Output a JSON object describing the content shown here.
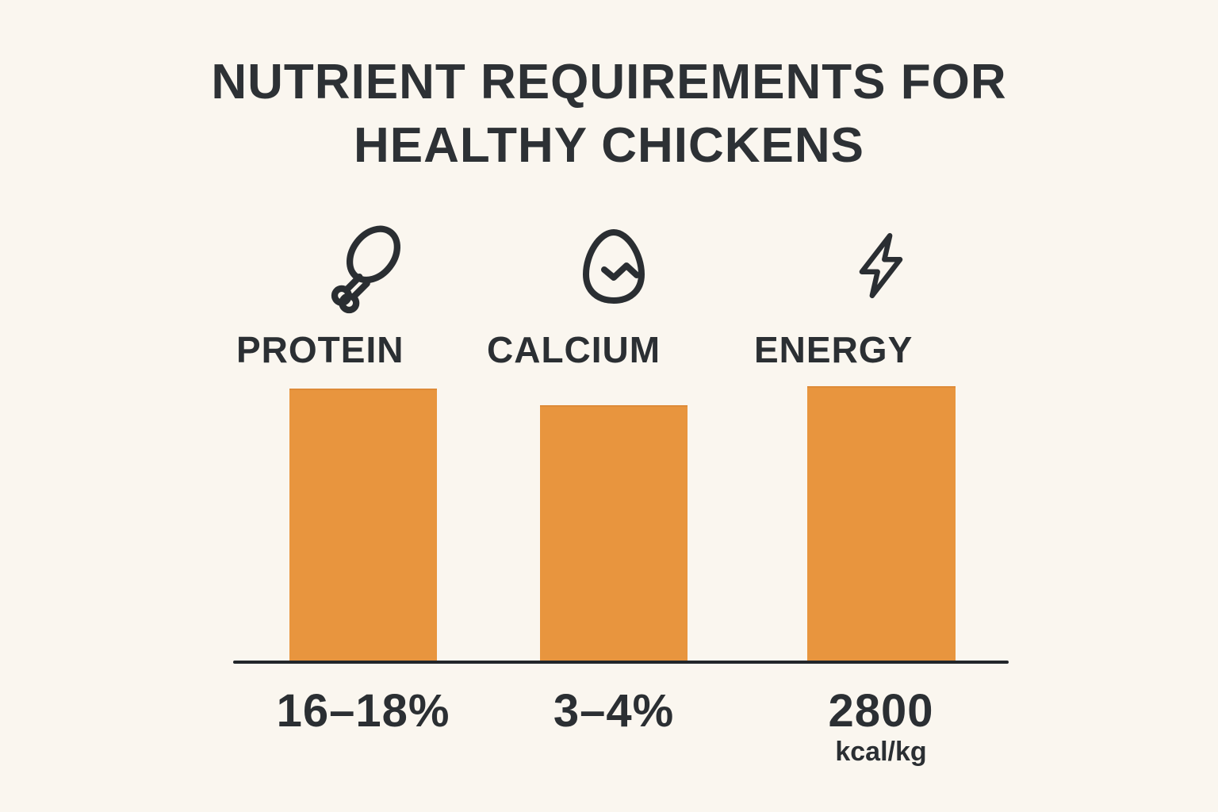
{
  "page": {
    "background_color": "#FAF6EF",
    "text_color": "#2B2F33",
    "accent_color": "#E8953E"
  },
  "title": {
    "line1": "NUTRIENT REQUIREMENTS FOR",
    "line2": "HEALTHY CHICKENS"
  },
  "columns": [
    {
      "icon": "drumstick-icon",
      "label": "PROTEIN",
      "value": "16–18%",
      "unit": ""
    },
    {
      "icon": "egg-icon",
      "label": "CALCIUM",
      "value": "3–4%",
      "unit": ""
    },
    {
      "icon": "lightning-bolt-icon",
      "label": "ENERGY",
      "value": "2800",
      "unit": "kcal/kg"
    }
  ],
  "chart_data": {
    "type": "bar",
    "title": "NUTRIENT REQUIREMENTS FOR HEALTHY CHICKENS",
    "categories": [
      "PROTEIN",
      "CALCIUM",
      "ENERGY"
    ],
    "values": [
      {
        "category": "PROTEIN",
        "display": "16–18%",
        "min": 16,
        "max": 18,
        "unit": "%"
      },
      {
        "category": "CALCIUM",
        "display": "3–4%",
        "min": 3,
        "max": 4,
        "unit": "%"
      },
      {
        "category": "ENERGY",
        "display": "2800 kcal/kg",
        "value": 2800,
        "unit": "kcal/kg"
      }
    ],
    "series": [
      {
        "name": "relative-bar-height",
        "values": [
          0.99,
          0.93,
          1.0
        ]
      }
    ],
    "bar_color": "#E8953E",
    "icons": [
      "drumstick-icon",
      "egg-icon",
      "lightning-bolt-icon"
    ],
    "legend": false,
    "grid": false,
    "axis": "single bottom baseline, no ticks"
  }
}
